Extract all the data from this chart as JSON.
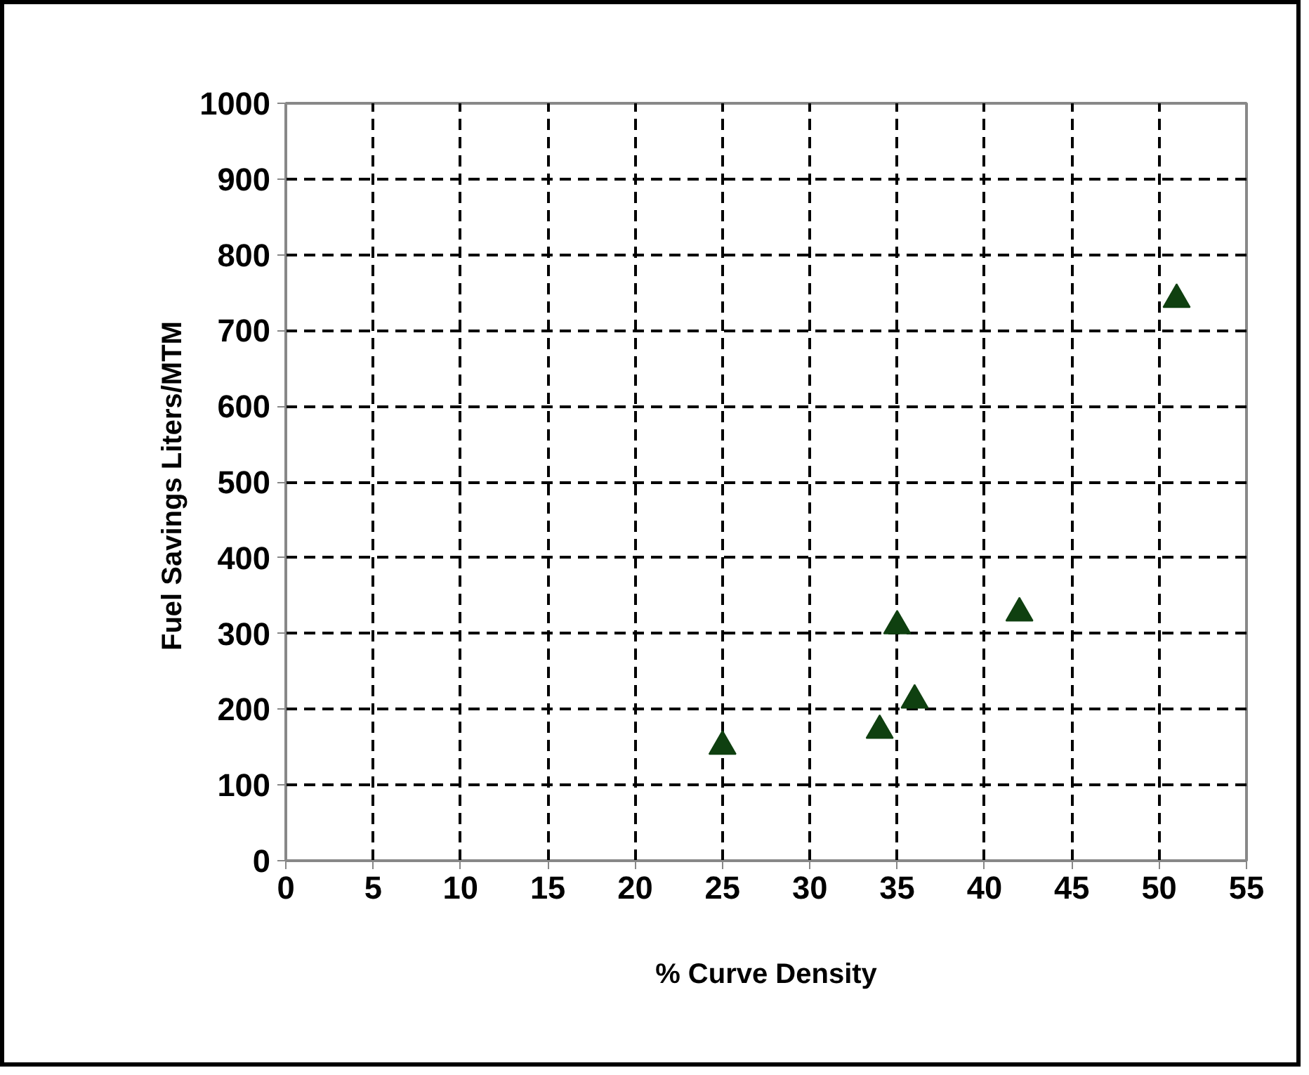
{
  "chart_data": {
    "type": "scatter",
    "xlabel": "% Curve Density",
    "ylabel": "Fuel  Savings Liters/MTM",
    "x": [
      25,
      34,
      35,
      36,
      42,
      51
    ],
    "series": [
      {
        "color": "#0f4010",
        "values": [
          151,
          172,
          310,
          212,
          327,
          741
        ]
      }
    ],
    "marker": "triangle",
    "xlim": [
      0,
      55
    ],
    "xticks": [
      0,
      5,
      10,
      15,
      20,
      25,
      30,
      35,
      40,
      45,
      50,
      55
    ],
    "ylim": [
      0,
      1000
    ],
    "yticks": [
      0,
      100,
      200,
      300,
      400,
      500,
      600,
      700,
      800,
      900,
      1000
    ],
    "grid": true
  }
}
